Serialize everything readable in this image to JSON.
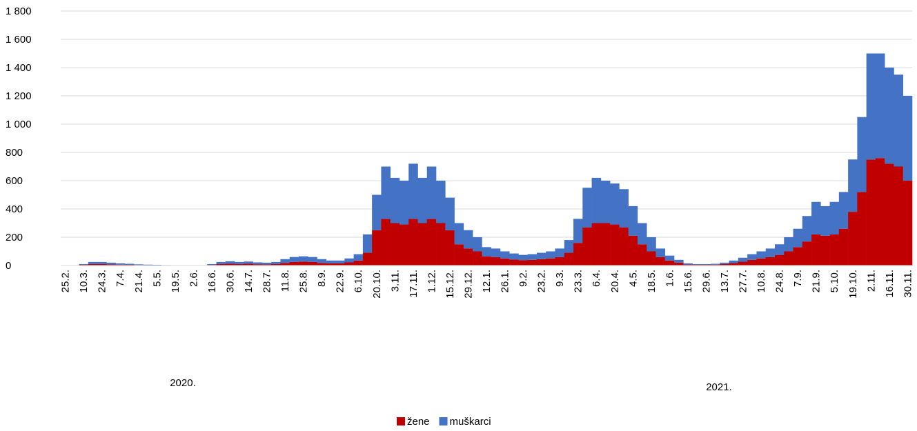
{
  "chart_data": {
    "type": "stacked_bar",
    "categories": [
      "25.2.",
      null,
      "10.3.",
      null,
      "24.3.",
      null,
      "7.4.",
      null,
      "21.4.",
      null,
      "5.5.",
      null,
      "19.5.",
      null,
      "2.6.",
      null,
      "16.6.",
      null,
      "30.6.",
      null,
      "14.7.",
      null,
      "28.7.",
      null,
      "11.8.",
      null,
      "25.8.",
      null,
      "8.9.",
      null,
      "22.9.",
      null,
      "6.10.",
      null,
      "20.10.",
      null,
      "3.11.",
      null,
      "17.11.",
      null,
      "1.12.",
      null,
      "15.12.",
      null,
      "29.12.",
      null,
      "12.1.",
      null,
      "26.1.",
      null,
      "9.2.",
      null,
      "23.2.",
      null,
      "9.3.",
      null,
      "23.3.",
      null,
      "6.4.",
      null,
      "20.4.",
      null,
      "4.5.",
      null,
      "18.5.",
      null,
      "1.6.",
      null,
      "15.6.",
      null,
      "29.6.",
      null,
      "13.7.",
      null,
      "27.7.",
      null,
      "10.8.",
      null,
      "24.8.",
      null,
      "7.9.",
      null,
      "21.9.",
      null,
      "5.10.",
      null,
      "19.10.",
      null,
      "2.11.",
      null,
      "16.11.",
      null,
      "30.11."
    ],
    "series": [
      {
        "name": "žene",
        "color": "#c00000",
        "values": [
          0,
          1,
          5,
          10,
          10,
          8,
          6,
          5,
          3,
          2,
          2,
          1,
          1,
          0,
          0,
          1,
          4,
          10,
          12,
          10,
          12,
          9,
          8,
          10,
          18,
          25,
          28,
          25,
          18,
          15,
          15,
          22,
          35,
          90,
          250,
          330,
          300,
          290,
          330,
          300,
          330,
          300,
          250,
          150,
          120,
          100,
          65,
          60,
          50,
          42,
          38,
          40,
          45,
          50,
          60,
          90,
          160,
          270,
          300,
          300,
          290,
          270,
          210,
          150,
          100,
          60,
          35,
          20,
          7,
          5,
          5,
          6,
          10,
          17,
          27,
          40,
          50,
          60,
          75,
          100,
          130,
          170,
          220,
          210,
          220,
          260,
          380,
          520,
          750,
          760,
          720,
          700,
          600
        ]
      },
      {
        "name": "muškarci",
        "color": "#4472c4",
        "values": [
          0,
          1,
          5,
          15,
          15,
          12,
          9,
          7,
          5,
          4,
          3,
          2,
          1,
          1,
          1,
          1,
          6,
          15,
          18,
          15,
          16,
          13,
          12,
          15,
          27,
          35,
          37,
          35,
          27,
          20,
          20,
          28,
          45,
          130,
          250,
          370,
          320,
          310,
          390,
          320,
          370,
          300,
          230,
          150,
          130,
          100,
          65,
          60,
          50,
          43,
          37,
          40,
          45,
          50,
          60,
          90,
          170,
          280,
          320,
          300,
          290,
          270,
          210,
          150,
          100,
          60,
          35,
          20,
          8,
          5,
          5,
          6,
          10,
          18,
          28,
          40,
          50,
          60,
          75,
          100,
          130,
          180,
          230,
          210,
          230,
          260,
          370,
          530,
          750,
          740,
          680,
          650,
          600
        ]
      }
    ],
    "ylim": [
      0,
      1800
    ],
    "yticks": [
      0,
      200,
      400,
      600,
      800,
      {
        "value": 1000,
        "label": "1 000"
      },
      {
        "value": 1200,
        "label": "1 200"
      },
      {
        "value": 1400,
        "label": "1 400"
      },
      {
        "value": 1600,
        "label": "1 600"
      },
      {
        "value": 1800,
        "label": "1 800"
      }
    ],
    "grid": true,
    "annotations": [
      "2020.",
      "2021."
    ],
    "legend": "bottom"
  }
}
